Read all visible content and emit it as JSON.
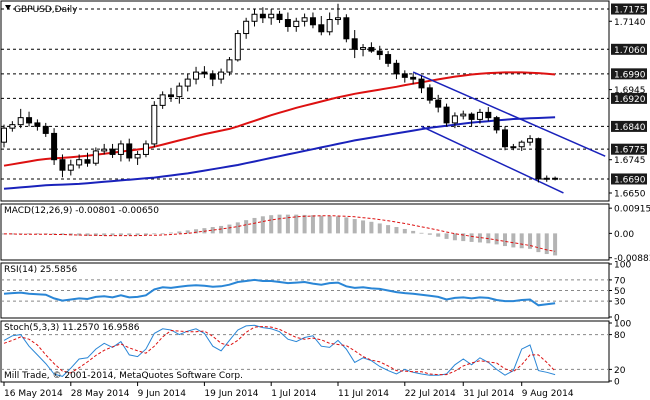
{
  "colors": {
    "background": "#ffffff",
    "grid": "#000000",
    "candle": "#000000",
    "ma_fast": "#dd1111",
    "ma_slow": "#1a22bb",
    "channel": "#1a22bb",
    "level_tag_bg": "#1a1a1a",
    "macd_hist": "#b4b4b4",
    "macd_signal": "#dd1111",
    "rsi": "#2a86d6",
    "stoch_main": "#2a86d6",
    "stoch_signal": "#dd1111"
  },
  "chart_data": {
    "type": "candlestick",
    "title": "GBPUSD,Daily",
    "price_axis": {
      "ylim": [
        1.663,
        1.7195
      ],
      "tick_labels": [
        "1.7175",
        "1.7140",
        "1.7060",
        "1.6990",
        "1.6945",
        "1.6920",
        "1.6840",
        "1.6775",
        "1.6745",
        "1.6690",
        "1.6650"
      ],
      "highlighted_levels": [
        "1.7175",
        "1.7060",
        "1.6990",
        "1.6920",
        "1.6840",
        "1.6775",
        "1.6690"
      ]
    },
    "x_axis": {
      "tick_labels": [
        "16 May 2014",
        "28 May 2014",
        "9 Jun 2014",
        "19 Jun 2014",
        "1 Jul 2014",
        "11 Jul 2014",
        "22 Jul 2014",
        "31 Jul 2014",
        "9 Aug 2014"
      ],
      "tick_positions": [
        0,
        8,
        16,
        24,
        32,
        40,
        48,
        55,
        62
      ]
    },
    "candles": [
      {
        "o": 1.6795,
        "h": 1.6845,
        "l": 1.678,
        "c": 1.6835
      },
      {
        "o": 1.6835,
        "h": 1.6855,
        "l": 1.6825,
        "c": 1.6845
      },
      {
        "o": 1.6845,
        "h": 1.689,
        "l": 1.6835,
        "c": 1.6865
      },
      {
        "o": 1.6865,
        "h": 1.6882,
        "l": 1.684,
        "c": 1.685
      },
      {
        "o": 1.685,
        "h": 1.686,
        "l": 1.6828,
        "c": 1.684
      },
      {
        "o": 1.684,
        "h": 1.685,
        "l": 1.681,
        "c": 1.682
      },
      {
        "o": 1.682,
        "h": 1.6835,
        "l": 1.673,
        "c": 1.6745
      },
      {
        "o": 1.6745,
        "h": 1.676,
        "l": 1.6695,
        "c": 1.6715
      },
      {
        "o": 1.6715,
        "h": 1.6745,
        "l": 1.67,
        "c": 1.673
      },
      {
        "o": 1.673,
        "h": 1.676,
        "l": 1.672,
        "c": 1.6745
      },
      {
        "o": 1.6745,
        "h": 1.6765,
        "l": 1.6725,
        "c": 1.6735
      },
      {
        "o": 1.6735,
        "h": 1.678,
        "l": 1.6728,
        "c": 1.677
      },
      {
        "o": 1.677,
        "h": 1.679,
        "l": 1.676,
        "c": 1.6775
      },
      {
        "o": 1.6775,
        "h": 1.679,
        "l": 1.675,
        "c": 1.676
      },
      {
        "o": 1.676,
        "h": 1.68,
        "l": 1.674,
        "c": 1.679
      },
      {
        "o": 1.679,
        "h": 1.6805,
        "l": 1.674,
        "c": 1.675
      },
      {
        "o": 1.675,
        "h": 1.677,
        "l": 1.673,
        "c": 1.676
      },
      {
        "o": 1.676,
        "h": 1.68,
        "l": 1.6752,
        "c": 1.679
      },
      {
        "o": 1.679,
        "h": 1.6912,
        "l": 1.678,
        "c": 1.69
      },
      {
        "o": 1.69,
        "h": 1.694,
        "l": 1.689,
        "c": 1.693
      },
      {
        "o": 1.693,
        "h": 1.695,
        "l": 1.691,
        "c": 1.6925
      },
      {
        "o": 1.6925,
        "h": 1.6965,
        "l": 1.6905,
        "c": 1.6955
      },
      {
        "o": 1.6955,
        "h": 1.699,
        "l": 1.694,
        "c": 1.6975
      },
      {
        "o": 1.6975,
        "h": 1.701,
        "l": 1.696,
        "c": 1.6995
      },
      {
        "o": 1.6995,
        "h": 1.7012,
        "l": 1.6978,
        "c": 1.699
      },
      {
        "o": 1.699,
        "h": 1.7,
        "l": 1.6955,
        "c": 1.6975
      },
      {
        "o": 1.6975,
        "h": 1.7005,
        "l": 1.6962,
        "c": 1.6995
      },
      {
        "o": 1.6995,
        "h": 1.7038,
        "l": 1.6985,
        "c": 1.703
      },
      {
        "o": 1.703,
        "h": 1.7115,
        "l": 1.7025,
        "c": 1.7105
      },
      {
        "o": 1.7105,
        "h": 1.715,
        "l": 1.709,
        "c": 1.714
      },
      {
        "o": 1.714,
        "h": 1.7175,
        "l": 1.7125,
        "c": 1.716
      },
      {
        "o": 1.716,
        "h": 1.718,
        "l": 1.7135,
        "c": 1.715
      },
      {
        "o": 1.715,
        "h": 1.7175,
        "l": 1.713,
        "c": 1.716
      },
      {
        "o": 1.716,
        "h": 1.717,
        "l": 1.7135,
        "c": 1.7145
      },
      {
        "o": 1.7145,
        "h": 1.7165,
        "l": 1.711,
        "c": 1.7125
      },
      {
        "o": 1.7125,
        "h": 1.715,
        "l": 1.711,
        "c": 1.714
      },
      {
        "o": 1.714,
        "h": 1.7162,
        "l": 1.7125,
        "c": 1.715
      },
      {
        "o": 1.715,
        "h": 1.7165,
        "l": 1.712,
        "c": 1.713
      },
      {
        "o": 1.713,
        "h": 1.7155,
        "l": 1.71,
        "c": 1.711
      },
      {
        "o": 1.711,
        "h": 1.7165,
        "l": 1.71,
        "c": 1.7145
      },
      {
        "o": 1.7145,
        "h": 1.719,
        "l": 1.713,
        "c": 1.715
      },
      {
        "o": 1.715,
        "h": 1.716,
        "l": 1.708,
        "c": 1.709
      },
      {
        "o": 1.709,
        "h": 1.7115,
        "l": 1.7035,
        "c": 1.706
      },
      {
        "o": 1.706,
        "h": 1.7075,
        "l": 1.704,
        "c": 1.7065
      },
      {
        "o": 1.7065,
        "h": 1.708,
        "l": 1.705,
        "c": 1.7055
      },
      {
        "o": 1.7055,
        "h": 1.707,
        "l": 1.703,
        "c": 1.7045
      },
      {
        "o": 1.7045,
        "h": 1.7055,
        "l": 1.701,
        "c": 1.702
      },
      {
        "o": 1.702,
        "h": 1.703,
        "l": 1.6975,
        "c": 1.699
      },
      {
        "o": 1.699,
        "h": 1.7,
        "l": 1.6965,
        "c": 1.698
      },
      {
        "o": 1.698,
        "h": 1.6992,
        "l": 1.696,
        "c": 1.6975
      },
      {
        "o": 1.6975,
        "h": 1.6985,
        "l": 1.6935,
        "c": 1.695
      },
      {
        "o": 1.695,
        "h": 1.696,
        "l": 1.6905,
        "c": 1.6915
      },
      {
        "o": 1.6915,
        "h": 1.693,
        "l": 1.688,
        "c": 1.6895
      },
      {
        "o": 1.6895,
        "h": 1.6905,
        "l": 1.684,
        "c": 1.685
      },
      {
        "o": 1.685,
        "h": 1.688,
        "l": 1.6835,
        "c": 1.687
      },
      {
        "o": 1.687,
        "h": 1.6885,
        "l": 1.686,
        "c": 1.6875
      },
      {
        "o": 1.6875,
        "h": 1.688,
        "l": 1.684,
        "c": 1.686
      },
      {
        "o": 1.686,
        "h": 1.689,
        "l": 1.6848,
        "c": 1.688
      },
      {
        "o": 1.688,
        "h": 1.6895,
        "l": 1.6855,
        "c": 1.6865
      },
      {
        "o": 1.6865,
        "h": 1.687,
        "l": 1.682,
        "c": 1.683
      },
      {
        "o": 1.683,
        "h": 1.684,
        "l": 1.6772,
        "c": 1.6782
      },
      {
        "o": 1.6782,
        "h": 1.679,
        "l": 1.6772,
        "c": 1.6782
      },
      {
        "o": 1.6782,
        "h": 1.68,
        "l": 1.677,
        "c": 1.6795
      },
      {
        "o": 1.6795,
        "h": 1.6815,
        "l": 1.6785,
        "c": 1.6805
      },
      {
        "o": 1.6805,
        "h": 1.6808,
        "l": 1.668,
        "c": 1.669
      },
      {
        "o": 1.669,
        "h": 1.67,
        "l": 1.6682,
        "c": 1.6692
      },
      {
        "o": 1.6692,
        "h": 1.6697,
        "l": 1.6686,
        "c": 1.669
      }
    ],
    "ma_fast": [
      1.6728,
      1.6732,
      1.6736,
      1.674,
      1.6744,
      1.6747,
      1.6749,
      1.675,
      1.6752,
      1.6754,
      1.6756,
      1.6759,
      1.6762,
      1.6765,
      1.6768,
      1.6771,
      1.6774,
      1.6777,
      1.6782,
      1.6788,
      1.6794,
      1.68,
      1.6806,
      1.6812,
      1.6818,
      1.6823,
      1.6828,
      1.6833,
      1.684,
      1.6848,
      1.6856,
      1.6864,
      1.6872,
      1.6879,
      1.6886,
      1.6893,
      1.6899,
      1.6905,
      1.6911,
      1.6917,
      1.6923,
      1.6928,
      1.6933,
      1.6937,
      1.6941,
      1.6945,
      1.6949,
      1.6953,
      1.6958,
      1.6962,
      1.6966,
      1.697,
      1.6974,
      1.6978,
      1.6982,
      1.6985,
      1.6988,
      1.699,
      1.6992,
      1.6993,
      1.6994,
      1.6994,
      1.6994,
      1.6993,
      1.6992,
      1.699,
      1.6988
    ],
    "ma_slow": [
      1.6662,
      1.6664,
      1.6666,
      1.6668,
      1.667,
      1.6672,
      1.6673,
      1.6674,
      1.6675,
      1.6676,
      1.6678,
      1.668,
      1.6682,
      1.6684,
      1.6686,
      1.6688,
      1.669,
      1.6692,
      1.6694,
      1.6697,
      1.67,
      1.6703,
      1.6706,
      1.671,
      1.6714,
      1.6718,
      1.6722,
      1.6726,
      1.673,
      1.6735,
      1.674,
      1.6745,
      1.675,
      1.6755,
      1.676,
      1.6765,
      1.677,
      1.6775,
      1.678,
      1.6785,
      1.679,
      1.6795,
      1.68,
      1.6804,
      1.6808,
      1.6812,
      1.6816,
      1.682,
      1.6824,
      1.6828,
      1.6832,
      1.6836,
      1.6839,
      1.6842,
      1.6845,
      1.6848,
      1.6851,
      1.6853,
      1.6855,
      1.6857,
      1.6859,
      1.6861,
      1.6862,
      1.6863,
      1.6864,
      1.6865,
      1.6866
    ],
    "channel": {
      "upper": {
        "from": {
          "i": 49,
          "price": 1.6995
        },
        "to": {
          "i": 72,
          "price": 1.6755
        }
      },
      "lower": {
        "from": {
          "i": 50,
          "price": 1.684
        },
        "to": {
          "i": 67,
          "price": 1.665
        }
      }
    },
    "indicators": {
      "macd": {
        "label": "MACD(12,26,9) -0.00801 -0.00650",
        "ylim": [
          -0.0093,
          0.0103
        ],
        "tick_labels": [
          "0.00915",
          "0.00",
          "-0.00883"
        ],
        "histogram": [
          -0.0004,
          -0.0004,
          -0.0003,
          -0.0003,
          -0.0003,
          -0.0003,
          -0.0004,
          -0.0006,
          -0.0007,
          -0.0008,
          -0.0009,
          -0.0009,
          -0.0008,
          -0.0008,
          -0.0007,
          -0.0007,
          -0.0007,
          -0.0006,
          -0.0003,
          0.0,
          0.0003,
          0.0007,
          0.0011,
          0.0015,
          0.0019,
          0.0023,
          0.0027,
          0.0032,
          0.004,
          0.0048,
          0.0056,
          0.0062,
          0.0066,
          0.0068,
          0.0068,
          0.0068,
          0.0067,
          0.0066,
          0.0064,
          0.0063,
          0.0062,
          0.0058,
          0.0052,
          0.0047,
          0.0042,
          0.0036,
          0.003,
          0.0023,
          0.0016,
          0.0009,
          0.0002,
          -0.0005,
          -0.0012,
          -0.002,
          -0.0025,
          -0.0028,
          -0.0031,
          -0.0033,
          -0.0036,
          -0.004,
          -0.0046,
          -0.0051,
          -0.0054,
          -0.0056,
          -0.0068,
          -0.0075,
          -0.008
        ],
        "signal": [
          -0.0002,
          -0.0002,
          -0.0003,
          -0.0003,
          -0.0003,
          -0.0003,
          -0.0004,
          -0.0004,
          -0.0005,
          -0.0006,
          -0.0007,
          -0.0007,
          -0.0008,
          -0.0008,
          -0.0008,
          -0.0008,
          -0.0008,
          -0.0007,
          -0.0007,
          -0.0006,
          -0.0004,
          -0.0002,
          0.0,
          0.0004,
          0.0008,
          0.0012,
          0.0016,
          0.002,
          0.0025,
          0.0031,
          0.0037,
          0.0043,
          0.0049,
          0.0053,
          0.0057,
          0.006,
          0.0062,
          0.0063,
          0.0064,
          0.0064,
          0.0063,
          0.0062,
          0.006,
          0.0057,
          0.0054,
          0.005,
          0.0046,
          0.0041,
          0.0036,
          0.003,
          0.0024,
          0.0018,
          0.0012,
          0.0005,
          -0.0001,
          -0.0006,
          -0.0011,
          -0.0015,
          -0.0019,
          -0.0024,
          -0.0029,
          -0.0034,
          -0.0039,
          -0.0044,
          -0.0052,
          -0.006,
          -0.0065
        ]
      },
      "rsi": {
        "label": "RSI(14) 25.5856",
        "ylim": [
          0,
          100
        ],
        "tick_labels": [
          "100",
          "70",
          "50",
          "30",
          "0"
        ],
        "levels": [
          70,
          50,
          30
        ],
        "values": [
          44,
          45,
          46,
          44,
          43,
          42,
          35,
          31,
          33,
          35,
          34,
          38,
          39,
          37,
          41,
          37,
          38,
          41,
          52,
          56,
          55,
          57,
          59,
          60,
          59,
          57,
          58,
          61,
          66,
          68,
          70,
          68,
          68,
          66,
          64,
          65,
          66,
          63,
          61,
          64,
          65,
          58,
          55,
          56,
          54,
          53,
          50,
          47,
          45,
          44,
          42,
          40,
          38,
          33,
          36,
          37,
          35,
          37,
          36,
          32,
          30,
          30,
          32,
          33,
          22,
          24,
          26
        ]
      },
      "stoch": {
        "label": "Stoch(5,3,3) 11.2570 16.9586",
        "ylim": [
          0,
          100
        ],
        "tick_labels": [
          "100",
          "80",
          "20",
          "0"
        ],
        "levels": [
          80,
          20
        ],
        "main": [
          70,
          78,
          80,
          60,
          45,
          30,
          12,
          8,
          22,
          38,
          40,
          55,
          65,
          58,
          68,
          45,
          42,
          55,
          82,
          90,
          88,
          80,
          86,
          90,
          82,
          60,
          52,
          70,
          88,
          95,
          96,
          92,
          90,
          85,
          72,
          68,
          75,
          78,
          60,
          58,
          70,
          55,
          32,
          40,
          35,
          25,
          18,
          12,
          20,
          15,
          12,
          10,
          10,
          12,
          28,
          38,
          28,
          40,
          32,
          20,
          10,
          18,
          55,
          62,
          18,
          15,
          11
        ],
        "signal": [
          65,
          70,
          76,
          72,
          62,
          45,
          30,
          17,
          14,
          23,
          33,
          44,
          53,
          59,
          64,
          57,
          52,
          48,
          60,
          76,
          87,
          86,
          85,
          85,
          86,
          77,
          65,
          61,
          70,
          84,
          93,
          94,
          93,
          89,
          82,
          75,
          72,
          74,
          71,
          65,
          63,
          61,
          52,
          42,
          36,
          33,
          26,
          18,
          17,
          16,
          16,
          12,
          11,
          11,
          17,
          26,
          31,
          35,
          33,
          31,
          21,
          16,
          28,
          45,
          45,
          32,
          17
        ]
      }
    }
  },
  "footer": {
    "copyright": "Mill Trade, © 2001-2014, MetaQuotes Software Corp."
  }
}
